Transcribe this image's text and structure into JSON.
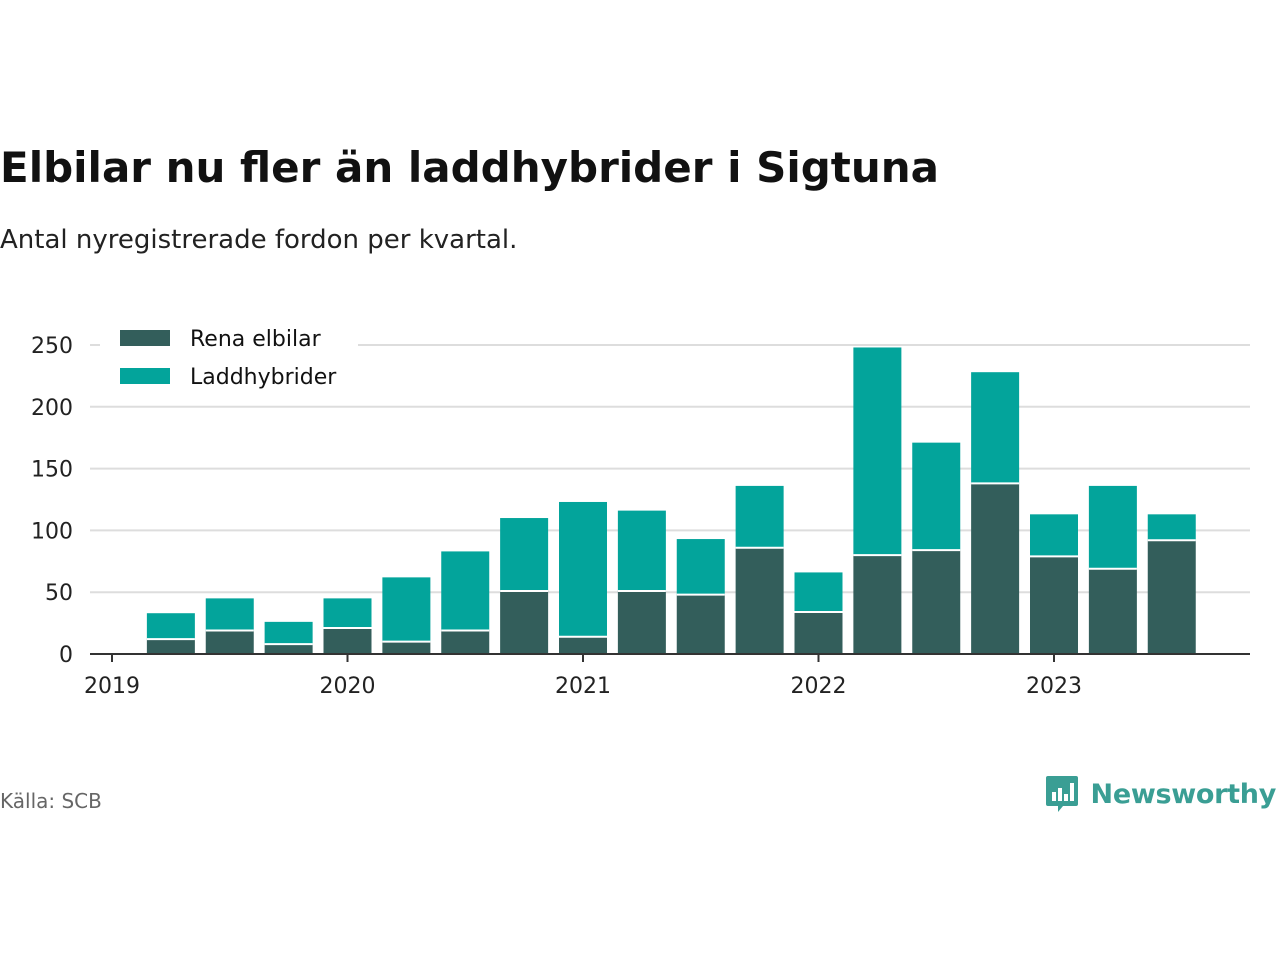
{
  "title": "Elbilar nu fler än laddhybrider i Sigtuna",
  "subtitle": "Antal nyregistrerade fordon per kvartal.",
  "source": "Källa: SCB",
  "brand": "Newsworthy",
  "colors": {
    "rena_elbilar": "#335e5b",
    "laddhybrider": "#03a49b",
    "brand": "#3a9e94",
    "grid": "#dddddd",
    "axis": "#333333"
  },
  "chart_data": {
    "type": "bar",
    "stacked": true,
    "title": "Elbilar nu fler än laddhybrider i Sigtuna",
    "subtitle": "Antal nyregistrerade fordon per kvartal.",
    "categories": [
      "2019-Q2",
      "2019-Q3",
      "2019-Q4",
      "2020-Q1",
      "2020-Q2",
      "2020-Q3",
      "2020-Q4",
      "2021-Q1",
      "2021-Q2",
      "2021-Q3",
      "2021-Q4",
      "2022-Q1",
      "2022-Q2",
      "2022-Q3",
      "2022-Q4",
      "2023-Q1",
      "2023-Q2",
      "2023-Q3"
    ],
    "series": [
      {
        "name": "Rena elbilar",
        "values": [
          12,
          19,
          8,
          21,
          10,
          19,
          51,
          14,
          51,
          48,
          86,
          34,
          80,
          84,
          138,
          79,
          69,
          92
        ]
      },
      {
        "name": "Laddhybrider",
        "values": [
          21,
          26,
          18,
          24,
          52,
          64,
          59,
          109,
          65,
          45,
          50,
          32,
          168,
          87,
          90,
          34,
          67,
          21
        ]
      }
    ],
    "x_ticks": [
      "2019",
      "2020",
      "2021",
      "2022",
      "2023"
    ],
    "y_ticks": [
      0,
      50,
      100,
      150,
      200,
      250
    ],
    "ylim": [
      0,
      250
    ],
    "xlabel": "",
    "ylabel": "",
    "grid": true,
    "legend_position": "top-left"
  }
}
